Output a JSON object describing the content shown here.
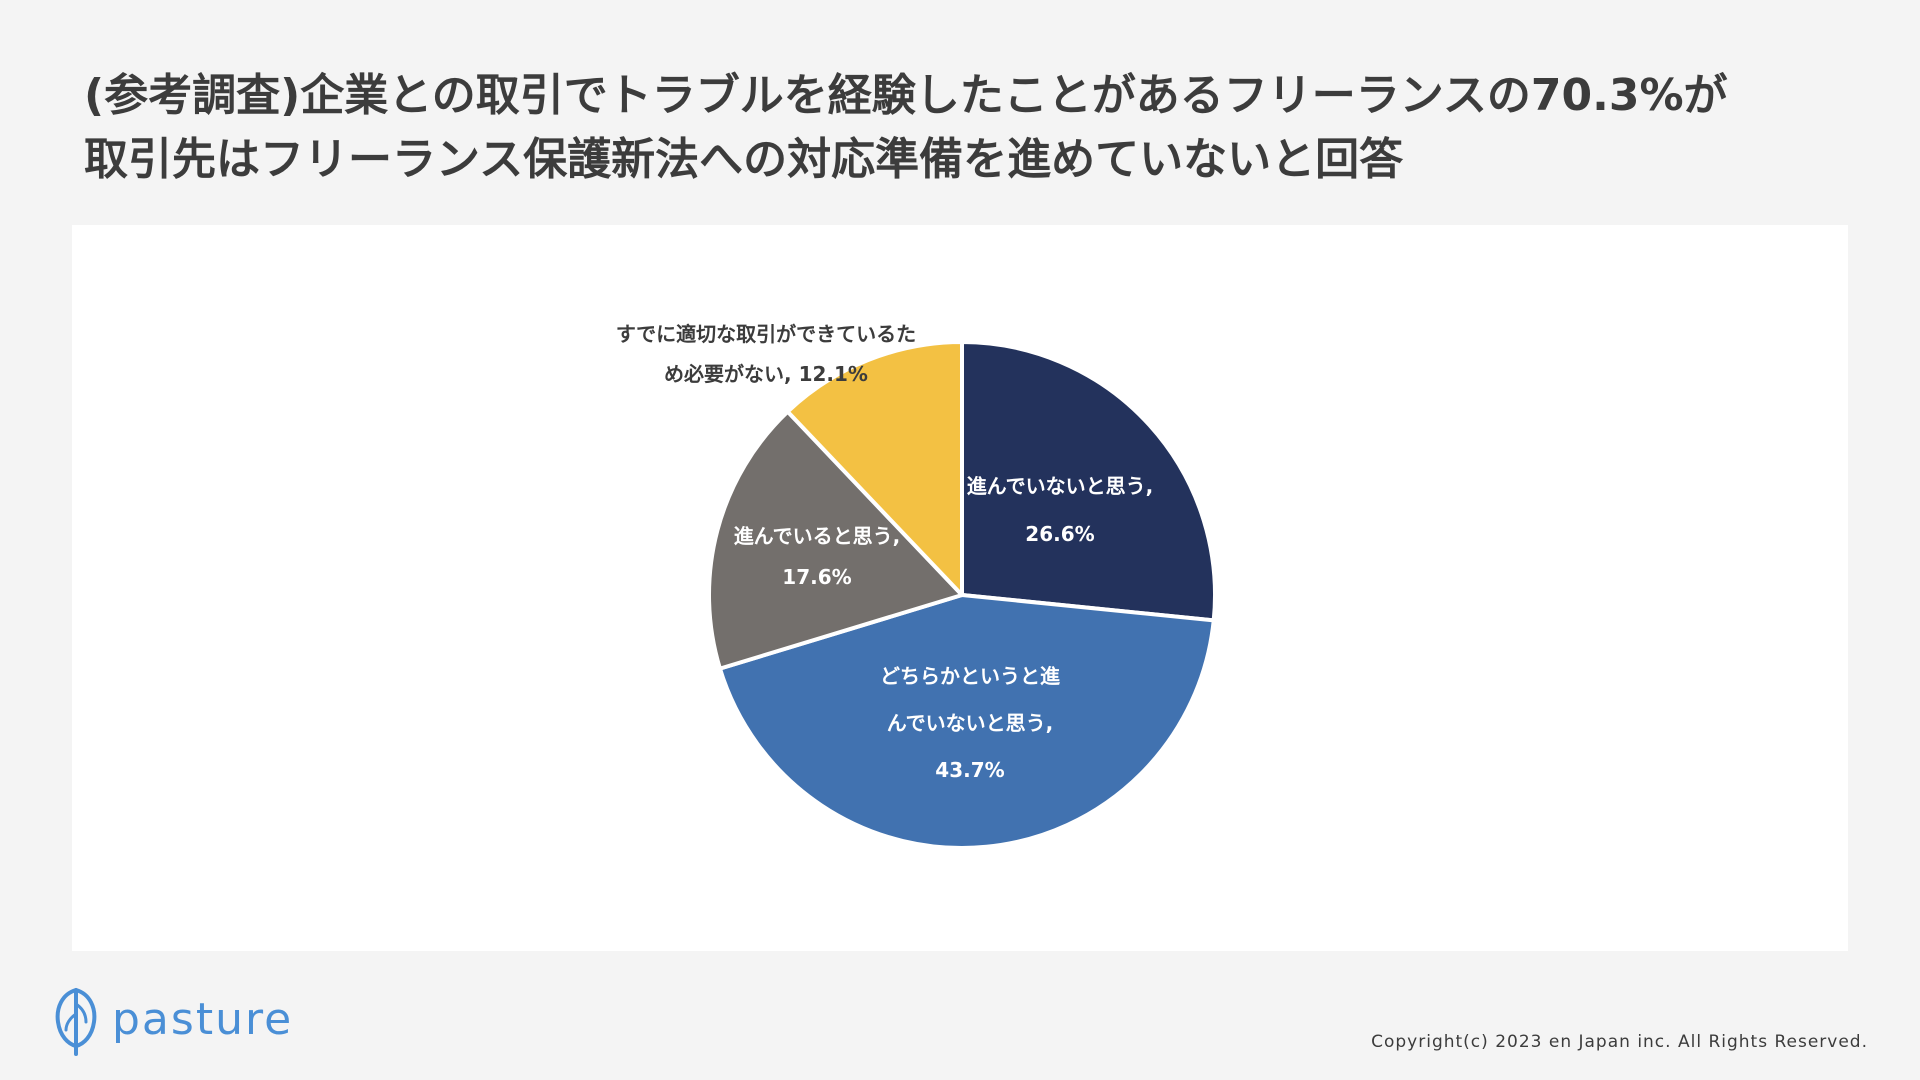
{
  "header": {
    "title_line1": "(参考調査)企業との取引でトラブルを経験したことがあるフリーランスの70.3%が",
    "title_line2": "取引先はフリーランス保護新法への対応準備を進めていないと回答"
  },
  "chart_data": {
    "type": "pie",
    "start": "12 o'clock",
    "direction": "clockwise",
    "slices": [
      {
        "label_lines": [
          "進んでいないと思う,",
          "26.6%"
        ],
        "category": "進んでいないと思う",
        "value": 26.6,
        "value_label": "26.6%",
        "color": "#23325c",
        "label_color": "#ffffff"
      },
      {
        "label_lines": [
          "どちらかというと進",
          "んでいないと思う,",
          "43.7%"
        ],
        "category": "どちらかというと進んでいないと思う",
        "value": 43.7,
        "value_label": "43.7%",
        "color": "#4172b0",
        "label_color": "#ffffff"
      },
      {
        "label_lines": [
          "進んでいると思う,",
          "17.6%"
        ],
        "category": "進んでいると思う",
        "value": 17.6,
        "value_label": "17.6%",
        "color": "#736f6c",
        "label_color": "#ffffff"
      },
      {
        "label_lines": [
          "すでに適切な取引ができているた",
          "め必要がない, 12.1%"
        ],
        "category": "すでに適切な取引ができているため必要がない",
        "value": 12.1,
        "value_label": "12.1%",
        "color": "#f3c143",
        "label_color": "#3c3c3c"
      }
    ]
  },
  "footer": {
    "brand": "pasture",
    "copyright": "Copyright(c) 2023 en Japan inc. All Rights Reserved.",
    "brand_color": "#4a8fd6"
  }
}
